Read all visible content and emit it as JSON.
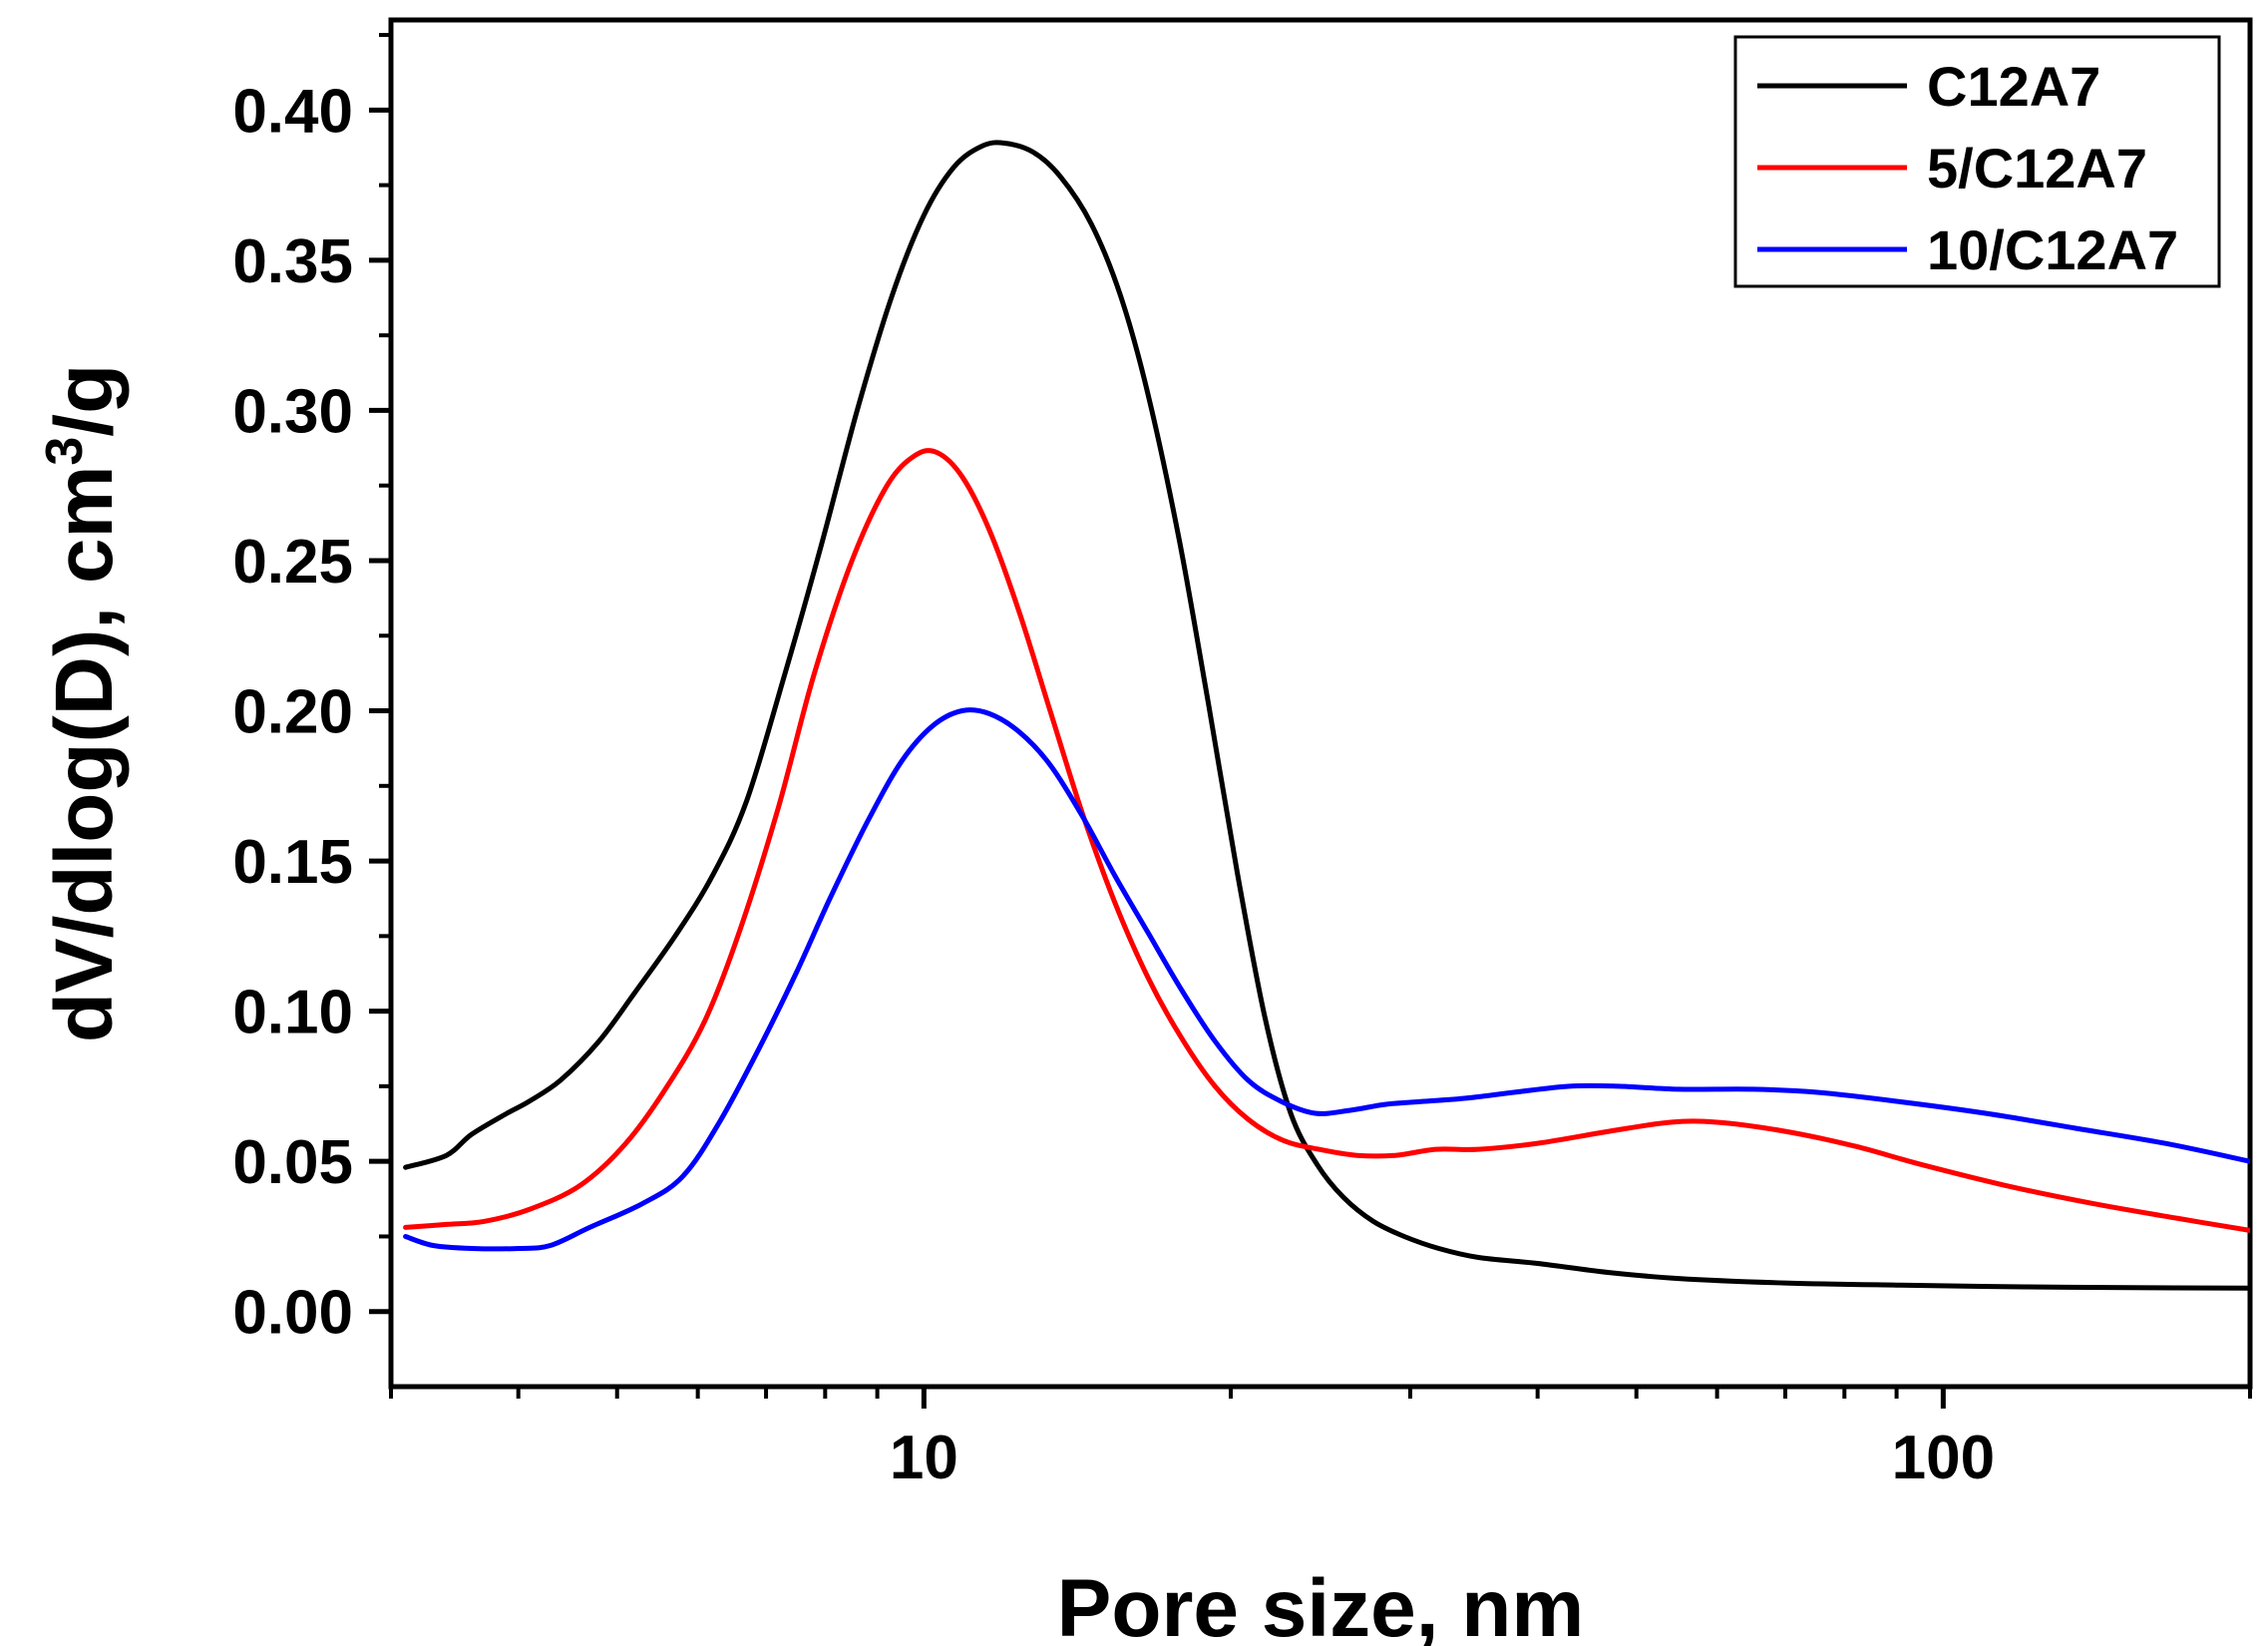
{
  "chart_data": {
    "type": "line",
    "title": "",
    "xlabel": "Pore size, nm",
    "ylabel": "dV/dlog(D), cm³/g",
    "ylabel_parts": [
      "dV/dlog(D), cm",
      "3",
      "/g"
    ],
    "xscale": "log",
    "xlim": [
      3.0,
      200.0
    ],
    "ylim": [
      -0.025,
      0.43
    ],
    "xticks": [
      10,
      100
    ],
    "xtick_labels": [
      "10",
      "100"
    ],
    "yticks": [
      0.0,
      0.05,
      0.1,
      0.15,
      0.2,
      0.25,
      0.3,
      0.35,
      0.4
    ],
    "ytick_labels": [
      "0.00",
      "0.05",
      "0.10",
      "0.15",
      "0.20",
      "0.25",
      "0.30",
      "0.35",
      "0.40"
    ],
    "legend_position": "top-right",
    "series": [
      {
        "name": "C12A7",
        "color": "#000000",
        "points": [
          [
            3.1,
            0.048
          ],
          [
            3.4,
            0.052
          ],
          [
            3.6,
            0.059
          ],
          [
            3.9,
            0.066
          ],
          [
            4.1,
            0.07
          ],
          [
            4.4,
            0.077
          ],
          [
            4.8,
            0.09
          ],
          [
            5.2,
            0.106
          ],
          [
            5.7,
            0.125
          ],
          [
            6.2,
            0.145
          ],
          [
            6.7,
            0.17
          ],
          [
            7.3,
            0.212
          ],
          [
            7.9,
            0.253
          ],
          [
            8.6,
            0.3
          ],
          [
            9.3,
            0.338
          ],
          [
            10.0,
            0.365
          ],
          [
            10.7,
            0.381
          ],
          [
            11.4,
            0.388
          ],
          [
            12.0,
            0.389
          ],
          [
            12.8,
            0.386
          ],
          [
            13.6,
            0.378
          ],
          [
            14.6,
            0.362
          ],
          [
            15.6,
            0.338
          ],
          [
            16.6,
            0.305
          ],
          [
            17.8,
            0.257
          ],
          [
            19.0,
            0.203
          ],
          [
            20.3,
            0.146
          ],
          [
            21.6,
            0.098
          ],
          [
            22.9,
            0.066
          ],
          [
            24.3,
            0.049
          ],
          [
            25.8,
            0.038
          ],
          [
            27.6,
            0.03
          ],
          [
            29.6,
            0.025
          ],
          [
            32.0,
            0.021
          ],
          [
            35.0,
            0.018
          ],
          [
            40.0,
            0.016
          ],
          [
            47.0,
            0.013
          ],
          [
            55.0,
            0.011
          ],
          [
            70.0,
            0.0095
          ],
          [
            90.0,
            0.0088
          ],
          [
            120.0,
            0.0082
          ],
          [
            160.0,
            0.0079
          ],
          [
            200.0,
            0.0078
          ]
        ]
      },
      {
        "name": "5/C12A7",
        "color": "#ff0000",
        "points": [
          [
            3.1,
            0.028
          ],
          [
            3.4,
            0.029
          ],
          [
            3.7,
            0.03
          ],
          [
            4.1,
            0.034
          ],
          [
            4.6,
            0.042
          ],
          [
            5.1,
            0.056
          ],
          [
            5.6,
            0.075
          ],
          [
            6.1,
            0.097
          ],
          [
            6.6,
            0.127
          ],
          [
            7.2,
            0.168
          ],
          [
            7.8,
            0.212
          ],
          [
            8.5,
            0.25
          ],
          [
            9.2,
            0.275
          ],
          [
            9.8,
            0.285
          ],
          [
            10.3,
            0.286
          ],
          [
            10.9,
            0.278
          ],
          [
            11.6,
            0.26
          ],
          [
            12.4,
            0.233
          ],
          [
            13.3,
            0.2
          ],
          [
            14.3,
            0.166
          ],
          [
            15.4,
            0.136
          ],
          [
            16.6,
            0.111
          ],
          [
            17.9,
            0.091
          ],
          [
            19.3,
            0.075
          ],
          [
            20.8,
            0.064
          ],
          [
            22.5,
            0.057
          ],
          [
            24.4,
            0.054
          ],
          [
            26.6,
            0.052
          ],
          [
            29.0,
            0.052
          ],
          [
            31.8,
            0.054
          ],
          [
            35.0,
            0.054
          ],
          [
            40.0,
            0.056
          ],
          [
            47.0,
            0.06
          ],
          [
            54.0,
            0.063
          ],
          [
            60.0,
            0.063
          ],
          [
            70.0,
            0.06
          ],
          [
            82.0,
            0.055
          ],
          [
            95.0,
            0.049
          ],
          [
            115.0,
            0.042
          ],
          [
            140.0,
            0.036
          ],
          [
            170.0,
            0.031
          ],
          [
            200.0,
            0.027
          ]
        ]
      },
      {
        "name": "10/C12A7",
        "color": "#0000ff",
        "points": [
          [
            3.1,
            0.025
          ],
          [
            3.3,
            0.022
          ],
          [
            3.6,
            0.021
          ],
          [
            4.0,
            0.021
          ],
          [
            4.3,
            0.022
          ],
          [
            4.7,
            0.028
          ],
          [
            5.3,
            0.036
          ],
          [
            5.8,
            0.045
          ],
          [
            6.3,
            0.063
          ],
          [
            6.9,
            0.088
          ],
          [
            7.5,
            0.113
          ],
          [
            8.1,
            0.138
          ],
          [
            8.8,
            0.163
          ],
          [
            9.5,
            0.183
          ],
          [
            10.2,
            0.195
          ],
          [
            10.9,
            0.2
          ],
          [
            11.6,
            0.199
          ],
          [
            12.4,
            0.193
          ],
          [
            13.3,
            0.182
          ],
          [
            14.3,
            0.165
          ],
          [
            15.4,
            0.145
          ],
          [
            16.6,
            0.126
          ],
          [
            17.9,
            0.107
          ],
          [
            19.3,
            0.09
          ],
          [
            20.8,
            0.077
          ],
          [
            22.4,
            0.07
          ],
          [
            24.2,
            0.066
          ],
          [
            26.2,
            0.067
          ],
          [
            28.4,
            0.069
          ],
          [
            31.0,
            0.07
          ],
          [
            34.0,
            0.071
          ],
          [
            38.0,
            0.073
          ],
          [
            43.0,
            0.075
          ],
          [
            48.0,
            0.075
          ],
          [
            55.0,
            0.074
          ],
          [
            65.0,
            0.074
          ],
          [
            75.0,
            0.073
          ],
          [
            90.0,
            0.07
          ],
          [
            110.0,
            0.066
          ],
          [
            135.0,
            0.061
          ],
          [
            165.0,
            0.056
          ],
          [
            200.0,
            0.05
          ]
        ]
      }
    ]
  }
}
